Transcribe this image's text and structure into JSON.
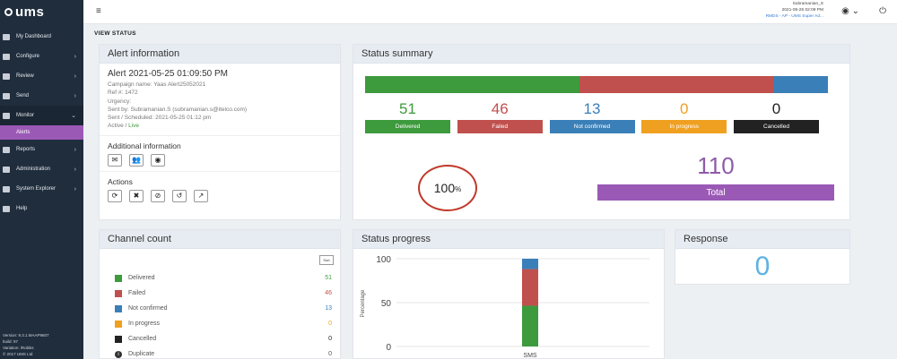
{
  "app": {
    "logo": "ums"
  },
  "sidebar": {
    "items": [
      {
        "label": "My Dashboard",
        "chevron": ""
      },
      {
        "label": "Configure",
        "chevron": "›"
      },
      {
        "label": "Review",
        "chevron": "›"
      },
      {
        "label": "Send",
        "chevron": "›"
      },
      {
        "label": "Monitor",
        "chevron": "⌄"
      },
      {
        "label": "Alerts",
        "chevron": ""
      },
      {
        "label": "Reports",
        "chevron": "›"
      },
      {
        "label": "Administration",
        "chevron": "›"
      },
      {
        "label": "System Explorer",
        "chevron": "›"
      },
      {
        "label": "Help",
        "chevron": ""
      }
    ],
    "footer": [
      "Version: 9.3.1.MAAP9607",
      "build: 97",
      "Variation: iRobiks",
      "© 2017 UMS Ltd"
    ]
  },
  "header": {
    "menu_icon": "≡",
    "user_name": "Subramanian_S",
    "user_time": "2021-05-25 02:09 PM",
    "user_org": "RMDS - AP - UMS Super Ad...",
    "globe_icon": "◉ ⌄",
    "power_icon": "⏻"
  },
  "breadcrumb": "VIEW STATUS",
  "alert_info": {
    "title": "Alert information",
    "alert_time": "Alert 2021-05-25 01:09:50 PM",
    "campaign": "Campaign name: Yaas Alert25052021",
    "ref": "Ref #: 1472",
    "urgency": "Urgency:",
    "sent_by": "Sent by: Subramanian.S (subramanian.s@itelco.com)",
    "scheduled": "Sent / Scheduled: 2021-05-25 01:12 pm",
    "status_label": "Active / ",
    "status_value": "Live",
    "additional_title": "Additional information",
    "additional_icons": [
      "✉",
      "👥",
      "◉"
    ],
    "actions_title": "Actions",
    "action_icons": [
      "⟳",
      "✖",
      "⊘",
      "↺",
      "↗"
    ]
  },
  "status_summary": {
    "title": "Status summary",
    "stats": [
      {
        "value": "51",
        "label": "Delivered",
        "color": "#3d9a3d"
      },
      {
        "value": "46",
        "label": "Failed",
        "color": "#c0504d"
      },
      {
        "value": "13",
        "label": "Not confirmed",
        "color": "#3a7fb8"
      },
      {
        "value": "0",
        "label": "In progress",
        "color": "#f0a020"
      },
      {
        "value": "0",
        "label": "Cancelled",
        "color": "#222222"
      }
    ],
    "bar_fractions": [
      0.4636,
      0.4182,
      0.1182
    ],
    "percent_value": "100",
    "percent_unit": "%",
    "total_value": "110",
    "total_label": "Total"
  },
  "channel_count": {
    "title": "Channel count",
    "sort_label": "Sort",
    "rows": [
      {
        "label": "Delivered",
        "count": "51",
        "color": "#3d9a3d"
      },
      {
        "label": "Failed",
        "count": "46",
        "color": "#c0504d"
      },
      {
        "label": "Not confirmed",
        "count": "13",
        "color": "#3a7fb8"
      },
      {
        "label": "In progress",
        "count": "0",
        "color": "#f0a020"
      },
      {
        "label": "Cancelled",
        "count": "0",
        "color": "#222222"
      },
      {
        "label": "Duplicate",
        "count": "0",
        "color": ""
      }
    ]
  },
  "status_progress": {
    "title": "Status progress",
    "chart_data": {
      "type": "bar",
      "stacked": true,
      "categories": [
        "SMS"
      ],
      "series": [
        {
          "name": "Delivered",
          "values": [
            46.4
          ],
          "color": "#3d9a3d"
        },
        {
          "name": "Failed",
          "values": [
            41.8
          ],
          "color": "#c0504d"
        },
        {
          "name": "Not confirmed",
          "values": [
            11.8
          ],
          "color": "#3a7fb8"
        }
      ],
      "ylabel": "Percentage",
      "yticks": [
        0,
        50,
        100
      ],
      "ylim": [
        0,
        100
      ]
    }
  },
  "response": {
    "title": "Response",
    "value": "0"
  }
}
